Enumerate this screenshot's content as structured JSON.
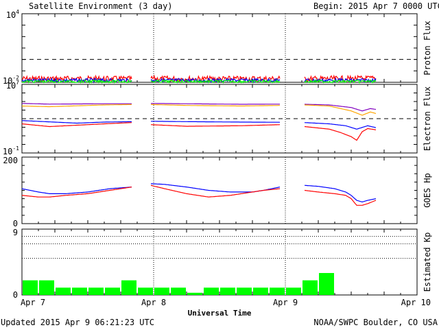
{
  "header": {
    "title": "Satellite Environment (3 day)",
    "begin": "Begin:  2015 Apr 7 0000 UTC"
  },
  "footer": {
    "updated": "Updated 2015 Apr  9 06:21:23 UTC",
    "source": "NOAA/SWPC Boulder, CO USA"
  },
  "colors": {
    "red": "#ff0000",
    "blue": "#0000ff",
    "green": "#00ff00",
    "purple": "#8000c0",
    "orange": "#ffa500",
    "axis": "#000000"
  },
  "chart_data": [
    {
      "type": "line",
      "ylabel": "Proton Flux",
      "scale": "log",
      "ylim_exp": [
        -2,
        4
      ],
      "tick_labels": [
        {
          "base": "10",
          "exp": "4"
        },
        {
          "base": "10",
          "exp": "-2"
        }
      ],
      "threshold": 1,
      "xlim": [
        0,
        72
      ],
      "series": [
        {
          "color": "red",
          "noise": 0.08,
          "segments": [
            [
              [
                0,
                0.02
              ],
              [
                10,
                0.021
              ],
              [
                20,
                0.02
              ]
            ],
            [
              [
                23.5,
                0.021
              ],
              [
                35,
                0.02
              ],
              [
                47,
                0.021
              ]
            ],
            [
              [
                51.5,
                0.02
              ],
              [
                57,
                0.021
              ],
              [
                64.5,
                0.022
              ]
            ]
          ]
        },
        {
          "color": "blue",
          "noise": 0.05,
          "segments": [
            [
              [
                0,
                0.015
              ],
              [
                20,
                0.015
              ]
            ],
            [
              [
                23.5,
                0.015
              ],
              [
                47,
                0.015
              ]
            ],
            [
              [
                51.5,
                0.015
              ],
              [
                64.5,
                0.015
              ]
            ]
          ]
        },
        {
          "color": "green",
          "noise": 0.04,
          "segments": [
            [
              [
                0,
                0.012
              ],
              [
                20,
                0.012
              ]
            ],
            [
              [
                23.5,
                0.012
              ],
              [
                47,
                0.012
              ]
            ],
            [
              [
                51.5,
                0.012
              ],
              [
                64.5,
                0.012
              ]
            ]
          ]
        }
      ]
    },
    {
      "type": "line",
      "ylabel": "Electron Flux",
      "scale": "log",
      "ylim_exp": [
        -1,
        7
      ],
      "tick_labels": [
        {
          "base": "10",
          "exp": "7"
        },
        {
          "base": "10",
          "exp": "-1"
        }
      ],
      "threshold": 1000,
      "xlim": [
        0,
        72
      ],
      "series": [
        {
          "color": "purple",
          "noise": 0.0,
          "segments": [
            [
              [
                0,
                60000
              ],
              [
                5,
                50000
              ],
              [
                15,
                55000
              ],
              [
                20,
                55000
              ]
            ],
            [
              [
                23.5,
                60000
              ],
              [
                30,
                55000
              ],
              [
                40,
                48000
              ],
              [
                47,
                50000
              ]
            ],
            [
              [
                51.5,
                48000
              ],
              [
                56,
                40000
              ],
              [
                60,
                20000
              ],
              [
                62,
                8000
              ],
              [
                63.5,
                15000
              ],
              [
                64.5,
                12000
              ]
            ]
          ]
        },
        {
          "color": "orange",
          "noise": 0.0,
          "segments": [
            [
              [
                0,
                30000
              ],
              [
                5,
                25000
              ],
              [
                15,
                40000
              ],
              [
                20,
                45000
              ]
            ],
            [
              [
                23.5,
                45000
              ],
              [
                30,
                35000
              ],
              [
                40,
                30000
              ],
              [
                47,
                35000
              ]
            ],
            [
              [
                51.5,
                40000
              ],
              [
                56,
                30000
              ],
              [
                60,
                8000
              ],
              [
                62,
                2500
              ],
              [
                63.5,
                6000
              ],
              [
                64.5,
                4000
              ]
            ]
          ]
        },
        {
          "color": "blue",
          "noise": 0.0,
          "segments": [
            [
              [
                0,
                600
              ],
              [
                10,
                300
              ],
              [
                15,
                400
              ],
              [
                20,
                450
              ]
            ],
            [
              [
                23.5,
                500
              ],
              [
                30,
                450
              ],
              [
                40,
                400
              ],
              [
                47,
                380
              ]
            ],
            [
              [
                51.5,
                350
              ],
              [
                56,
                250
              ],
              [
                59,
                150
              ],
              [
                61,
                60
              ],
              [
                63,
                150
              ],
              [
                64.5,
                90
              ]
            ]
          ]
        },
        {
          "color": "red",
          "noise": 0.0,
          "segments": [
            [
              [
                0,
                250
              ],
              [
                5,
                120
              ],
              [
                15,
                250
              ],
              [
                20,
                350
              ]
            ],
            [
              [
                23.5,
                200
              ],
              [
                30,
                130
              ],
              [
                40,
                150
              ],
              [
                47,
                200
              ]
            ],
            [
              [
                51.5,
                120
              ],
              [
                56,
                60
              ],
              [
                58,
                25
              ],
              [
                60,
                8
              ],
              [
                61,
                3
              ],
              [
                62,
                30
              ],
              [
                63,
                70
              ],
              [
                64.5,
                50
              ]
            ]
          ]
        }
      ]
    },
    {
      "type": "line",
      "ylabel": "GOES Hp",
      "scale": "linear",
      "ylim": [
        0,
        200
      ],
      "tick_labels": [
        "200",
        "0"
      ],
      "xlim": [
        0,
        72
      ],
      "series": [
        {
          "color": "blue",
          "noise": 0.0,
          "segments": [
            [
              [
                0,
                105
              ],
              [
                3,
                95
              ],
              [
                5,
                90
              ],
              [
                8,
                90
              ],
              [
                12,
                95
              ],
              [
                16,
                105
              ],
              [
                20,
                110
              ]
            ],
            [
              [
                23.5,
                120
              ],
              [
                26,
                118
              ],
              [
                30,
                110
              ],
              [
                34,
                100
              ],
              [
                38,
                95
              ],
              [
                42,
                95
              ],
              [
                44,
                100
              ],
              [
                47,
                110
              ]
            ],
            [
              [
                51.5,
                115
              ],
              [
                54,
                112
              ],
              [
                57,
                105
              ],
              [
                59,
                95
              ],
              [
                60,
                85
              ],
              [
                61,
                70
              ],
              [
                62,
                65
              ],
              [
                63,
                70
              ],
              [
                64.5,
                75
              ]
            ]
          ]
        },
        {
          "color": "red",
          "noise": 0.0,
          "segments": [
            [
              [
                0,
                85
              ],
              [
                3,
                80
              ],
              [
                5,
                80
              ],
              [
                8,
                85
              ],
              [
                12,
                90
              ],
              [
                16,
                100
              ],
              [
                20,
                110
              ]
            ],
            [
              [
                23.5,
                115
              ],
              [
                26,
                105
              ],
              [
                30,
                90
              ],
              [
                34,
                80
              ],
              [
                38,
                85
              ],
              [
                42,
                95
              ],
              [
                44,
                100
              ],
              [
                47,
                105
              ]
            ],
            [
              [
                51.5,
                100
              ],
              [
                54,
                95
              ],
              [
                57,
                90
              ],
              [
                59,
                85
              ],
              [
                60,
                75
              ],
              [
                61,
                55
              ],
              [
                62,
                55
              ],
              [
                63,
                60
              ],
              [
                64.5,
                70
              ]
            ]
          ]
        }
      ]
    },
    {
      "type": "bar",
      "ylabel": "Estimated Kp",
      "ylim": [
        0,
        9
      ],
      "tick_labels": [
        "9",
        "0"
      ],
      "gridlines": [
        5,
        7,
        8,
        9
      ],
      "xlim": [
        0,
        72
      ],
      "bars": [
        {
          "start": 0,
          "value": 2
        },
        {
          "start": 3,
          "value": 2
        },
        {
          "start": 6,
          "value": 1
        },
        {
          "start": 9,
          "value": 1
        },
        {
          "start": 12,
          "value": 1
        },
        {
          "start": 15,
          "value": 1
        },
        {
          "start": 18,
          "value": 2
        },
        {
          "start": 21,
          "value": 1
        },
        {
          "start": 24,
          "value": 1
        },
        {
          "start": 27,
          "value": 1
        },
        {
          "start": 30,
          "value": 0.3
        },
        {
          "start": 33,
          "value": 1
        },
        {
          "start": 36,
          "value": 1
        },
        {
          "start": 39,
          "value": 1
        },
        {
          "start": 42,
          "value": 1
        },
        {
          "start": 45,
          "value": 1
        },
        {
          "start": 48,
          "value": 1
        },
        {
          "start": 51,
          "value": 2
        },
        {
          "start": 54,
          "value": 3
        }
      ]
    }
  ],
  "xaxis": {
    "label": "Universal Time",
    "ticks": [
      {
        "pos": 0,
        "label": "Apr 7"
      },
      {
        "pos": 24,
        "label": "Apr 8"
      },
      {
        "pos": 48,
        "label": "Apr 9"
      },
      {
        "pos": 72,
        "label": "Apr 10"
      }
    ]
  }
}
